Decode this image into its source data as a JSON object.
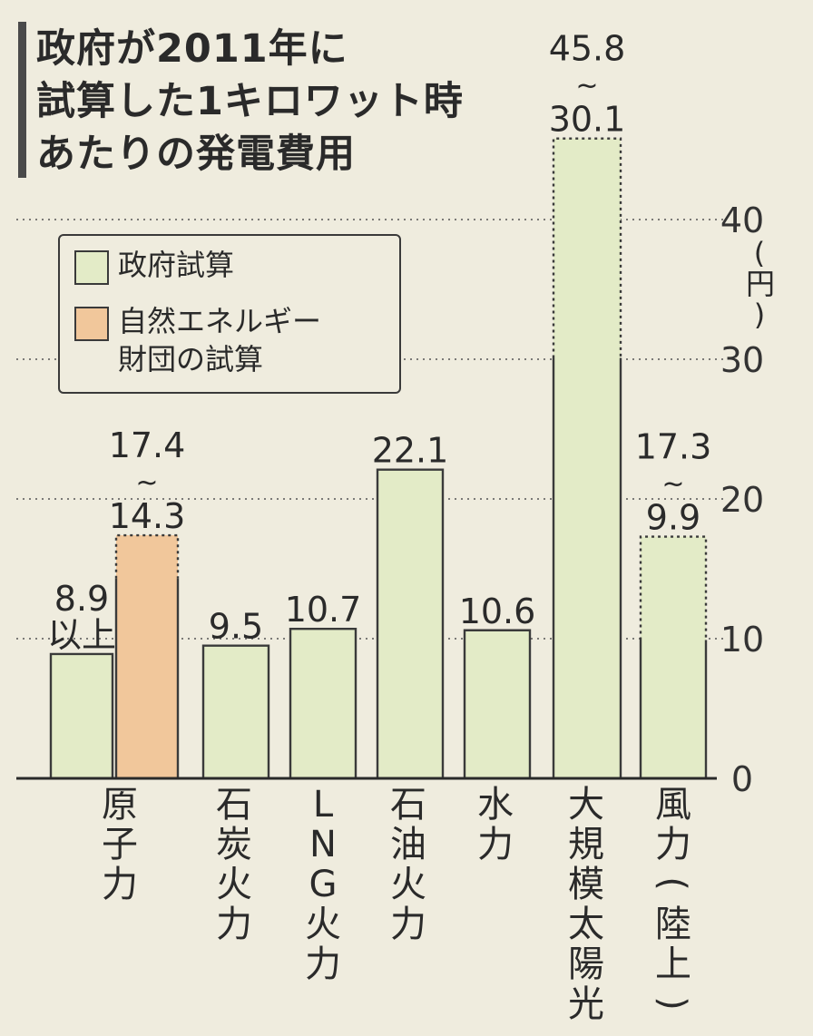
{
  "title_lines": [
    "政府が2011年に",
    "試算した1キロワット時",
    "あたりの発電費用"
  ],
  "legend": {
    "government": "政府試算",
    "foundation_line1": "自然エネルギー",
    "foundation_line2": "財団の試算"
  },
  "unit_label": "(円)",
  "colors": {
    "government": "#e3ebc7",
    "foundation": "#f1c79b",
    "outline": "#3a3a3a",
    "grid": "#555555",
    "background": "#efecde"
  },
  "chart_data": {
    "type": "bar",
    "ylim": [
      0,
      45.8
    ],
    "yticks": [
      "0",
      "10",
      "20",
      "30",
      "40"
    ],
    "grid": "dotted horizontal",
    "y_axis_side": "right",
    "legend_placement": "top-left",
    "categories": [
      {
        "name": "原子力",
        "bars": [
          {
            "series": "政府試算",
            "value": 8.9,
            "label_top": "8.9",
            "label_bottom": "以上",
            "dotted_top": false
          },
          {
            "series": "自然エネルギー財団の試算",
            "value": 14.3,
            "max": 17.4,
            "label_top": "17.4",
            "label_bottom": "14.3",
            "dotted_top": true
          }
        ]
      },
      {
        "name": "石炭火力",
        "bars": [
          {
            "series": "政府試算",
            "value": 9.5,
            "label_top": "9.5",
            "dotted_top": false
          }
        ]
      },
      {
        "name": "LNG火力",
        "bars": [
          {
            "series": "政府試算",
            "value": 10.7,
            "label_top": "10.7",
            "dotted_top": false
          }
        ]
      },
      {
        "name": "石油火力",
        "bars": [
          {
            "series": "政府試算",
            "value": 22.1,
            "label_top": "22.1",
            "dotted_top": false
          }
        ]
      },
      {
        "name": "水力",
        "bars": [
          {
            "series": "政府試算",
            "value": 10.6,
            "label_top": "10.6",
            "dotted_top": false
          }
        ]
      },
      {
        "name": "大規模太陽光",
        "bars": [
          {
            "series": "政府試算",
            "value": 30.1,
            "max": 45.8,
            "label_top": "45.8",
            "label_bottom": "30.1",
            "dotted_top": true
          }
        ]
      },
      {
        "name": "風力(陸上)",
        "bars": [
          {
            "series": "政府試算",
            "value": 9.9,
            "max": 17.3,
            "label_top": "17.3",
            "label_bottom": "9.9",
            "dotted_top": true
          }
        ]
      }
    ],
    "range_mark": "~"
  }
}
